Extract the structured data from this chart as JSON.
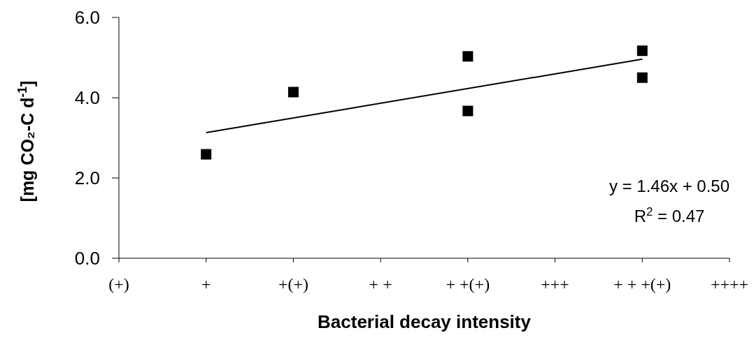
{
  "chart_data": {
    "type": "scatter",
    "xlabel": "Bacterial decay intensity",
    "ylabel": "[mg CO₂-C d$^{-1}$]",
    "categories": [
      "(+)",
      "+",
      "+(+)",
      "+ +",
      "+ +(+)",
      "+++",
      "+ + +(+)",
      "++++"
    ],
    "ylim": [
      0,
      6
    ],
    "yticks": [
      {
        "value": 0,
        "label": "0.0"
      },
      {
        "value": 2,
        "label": "2.0"
      },
      {
        "value": 4,
        "label": "4.0"
      },
      {
        "value": 6,
        "label": "6.0"
      }
    ],
    "series": [
      {
        "color": "#000000",
        "marker": "square",
        "x": [
          "+",
          "+(+)",
          "+ +(+)",
          "+ +(+)",
          "+ + +(+)",
          "+ + +(+)"
        ],
        "values": [
          2.59,
          4.14,
          5.03,
          3.67,
          5.17,
          4.5
        ]
      },
      {
        "type": "line",
        "color": "#000000",
        "marker": "none",
        "x": [
          "+",
          "+ + +(+)"
        ],
        "values": [
          3.13,
          4.96
        ]
      }
    ],
    "annotations": [
      "y = 1.46x + 0.50",
      "R$^{2}$ = 0.47"
    ],
    "grid": false
  }
}
